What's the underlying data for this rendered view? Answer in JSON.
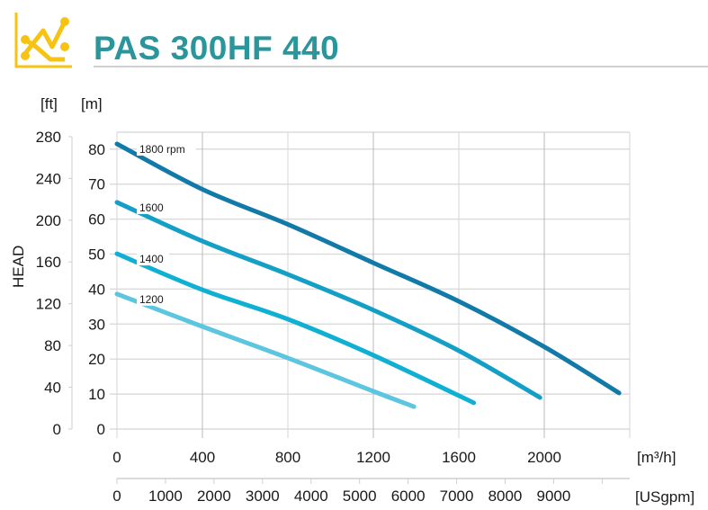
{
  "header": {
    "title": "PAS 300HF 440",
    "icon": "line-chart-icon",
    "icon_color": "#f6c315",
    "title_color": "#2a969c"
  },
  "chart_data": {
    "type": "line",
    "title": "PAS 300HF 440",
    "ylabel": "HEAD",
    "y_units": {
      "ft": "[ft]",
      "m": "[m]"
    },
    "x_units": {
      "m3h": "[m³/h]",
      "usgpm": "[USgpm]"
    },
    "ylim_m": [
      0,
      80
    ],
    "yticks_m": [
      0,
      10,
      20,
      30,
      40,
      50,
      60,
      70,
      80
    ],
    "yticks_ft": [
      0,
      40,
      80,
      120,
      160,
      200,
      240,
      280
    ],
    "xlim_m3h": [
      0,
      2400
    ],
    "xticks_m3h": [
      0,
      400,
      800,
      1200,
      1600,
      2000
    ],
    "xticks_usgpm": [
      0,
      1000,
      2000,
      3000,
      4000,
      5000,
      6000,
      7000,
      8000,
      9000
    ],
    "grid": true,
    "series": [
      {
        "name": "1800 rpm",
        "color": "#127aa8",
        "x": [
          0,
          400,
          800,
          1200,
          1600,
          2000,
          2350
        ],
        "y": [
          81.5,
          68.5,
          58.5,
          47.5,
          36.5,
          23.5,
          10.3
        ]
      },
      {
        "name": "1600",
        "color": "#149fc6",
        "x": [
          0,
          400,
          800,
          1200,
          1600,
          1980
        ],
        "y": [
          64.8,
          53.7,
          44.2,
          34.0,
          22.4,
          9.0
        ]
      },
      {
        "name": "1400",
        "color": "#0fb0d4",
        "x": [
          0,
          400,
          800,
          1200,
          1670
        ],
        "y": [
          50.1,
          39.8,
          31.4,
          21.1,
          7.5
        ]
      },
      {
        "name": "1200",
        "color": "#5cc5df",
        "x": [
          0,
          400,
          800,
          1200,
          1390
        ],
        "y": [
          38.6,
          29.3,
          20.3,
          10.8,
          6.4
        ]
      }
    ]
  }
}
